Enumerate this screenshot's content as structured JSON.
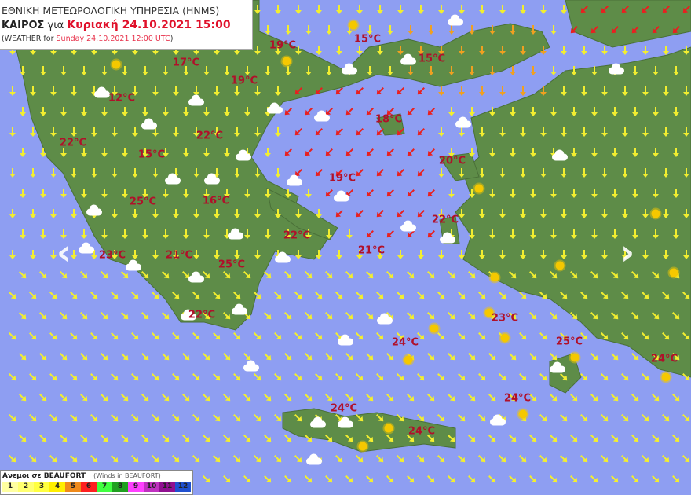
{
  "header": {
    "line1": "ΕΘΝΙΚΗ ΜΕΤΕΩΡΟΛΟΓΙΚΗ ΥΠΗΡΕΣΙΑ (HNMS)",
    "kairos": "ΚΑΙΡΟΣ",
    "gia": "για",
    "date_gr": "Κυριακή 24.10.2021 15:00",
    "weather_for": "(WEATHER for",
    "date_en": "Sunday 24.10.2021 12:00 UTC",
    ")": ")"
  },
  "temperatures": [
    "19°C",
    "15°C",
    "17°C",
    "19°C",
    "15°C",
    "12°C",
    "18°C",
    "22°C",
    "22°C",
    "15°C",
    "20°C",
    "19°C",
    "25°C",
    "16°C",
    "22°C",
    "22°C",
    "21°C",
    "23°C",
    "21°C",
    "25°C",
    "23°C",
    "22°C",
    "24°C",
    "25°C",
    "24°C",
    "24°C",
    "24°C",
    "24°C"
  ],
  "legend": {
    "title": "Ανεμοι σε BEAUFORT",
    "subtitle": "(Winds in BEAUFORT)",
    "levels": [
      {
        "n": "1",
        "color": "#ffffa0"
      },
      {
        "n": "2",
        "color": "#ffff70"
      },
      {
        "n": "3",
        "color": "#ffff40"
      },
      {
        "n": "4",
        "color": "#ffee00"
      },
      {
        "n": "5",
        "color": "#f08a1a"
      },
      {
        "n": "6",
        "color": "#ff2020"
      },
      {
        "n": "7",
        "color": "#40ff40"
      },
      {
        "n": "8",
        "color": "#20a020"
      },
      {
        "n": "9",
        "color": "#ff40ff"
      },
      {
        "n": "10",
        "color": "#c030c0"
      },
      {
        "n": "11",
        "color": "#901090"
      },
      {
        "n": "12",
        "color": "#2050d0"
      }
    ]
  },
  "nav": {
    "prev": "‹",
    "next": "›"
  },
  "colors": {
    "sea": "#8e9ef2",
    "land": "#5c8a48",
    "temp": "#b0102a"
  }
}
